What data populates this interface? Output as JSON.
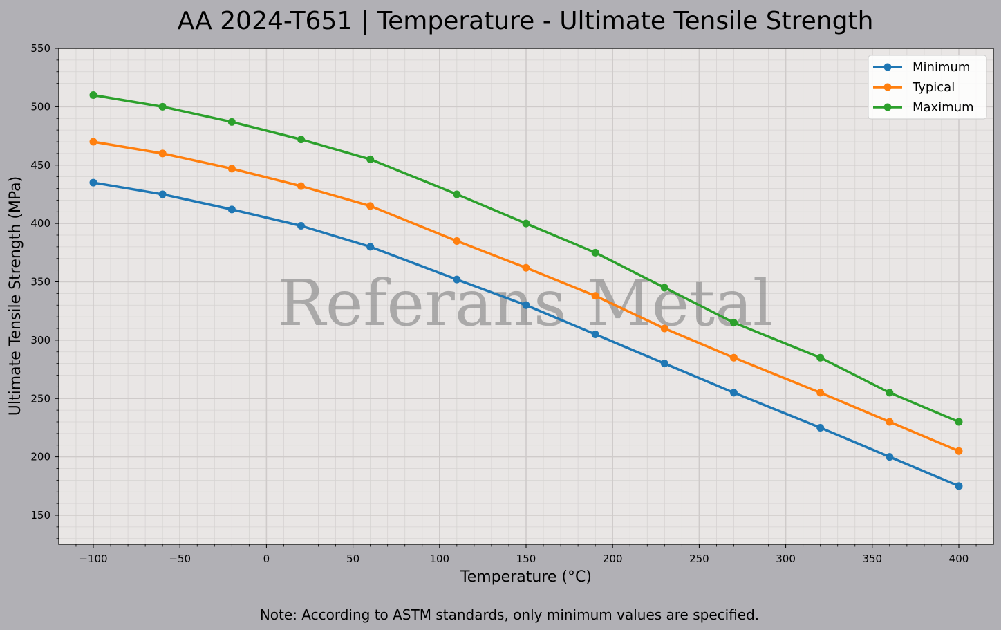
{
  "chart_data": {
    "type": "line",
    "title": "AA 2024-T651 | Temperature - Ultimate Tensile Strength",
    "xlabel": "Temperature (°C)",
    "ylabel": "Ultimate Tensile Strength (MPa)",
    "x": [
      -100,
      -60,
      -20,
      20,
      60,
      110,
      150,
      190,
      230,
      270,
      320,
      360,
      400
    ],
    "series": [
      {
        "name": "Minimum",
        "color": "#1f77b4",
        "values": [
          435,
          425,
          412,
          398,
          380,
          352,
          330,
          305,
          280,
          255,
          225,
          200,
          175
        ]
      },
      {
        "name": "Typical",
        "color": "#ff7f0e",
        "values": [
          470,
          460,
          447,
          432,
          415,
          385,
          362,
          338,
          310,
          285,
          255,
          230,
          205
        ]
      },
      {
        "name": "Maximum",
        "color": "#2ca02c",
        "values": [
          510,
          500,
          487,
          472,
          455,
          425,
          400,
          375,
          345,
          315,
          285,
          255,
          230
        ]
      }
    ],
    "xlim": [
      -120,
      420
    ],
    "ylim": [
      125,
      550
    ],
    "xticks": [
      -100,
      -50,
      0,
      50,
      100,
      150,
      200,
      250,
      300,
      350,
      400
    ],
    "xtick_labels": [
      "−100",
      "−50",
      "0",
      "50",
      "100",
      "150",
      "200",
      "250",
      "300",
      "350",
      "400"
    ],
    "yticks": [
      150,
      200,
      250,
      300,
      350,
      400,
      450,
      500,
      550
    ],
    "ytick_labels": [
      "150",
      "200",
      "250",
      "300",
      "350",
      "400",
      "450",
      "500",
      "550"
    ],
    "grid": true,
    "minor_grid": true,
    "legend_position": "upper right",
    "watermark": "Referans Metal",
    "note": "Note: According to ASTM standards, only minimum values are specified."
  },
  "colors": {
    "figure_bg": "#b1b0b5",
    "axes_bg": "#e9e6e5"
  }
}
